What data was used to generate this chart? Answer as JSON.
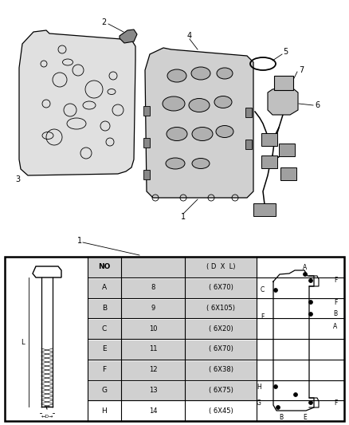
{
  "bg_color": "#ffffff",
  "table_rows": [
    {
      "letter": "NO",
      "number": "",
      "dim": "( D  X  L)"
    },
    {
      "letter": "A",
      "number": "8",
      "dim": "( 6X70)"
    },
    {
      "letter": "B",
      "number": "9",
      "dim": "( 6X105)"
    },
    {
      "letter": "C",
      "number": "10",
      "dim": "( 6X20)"
    },
    {
      "letter": "E",
      "number": "11",
      "dim": "( 6X70)"
    },
    {
      "letter": "F",
      "number": "12",
      "dim": "( 6X38)"
    },
    {
      "letter": "G",
      "number": "13",
      "dim": "( 6X75)"
    },
    {
      "letter": "H",
      "number": "14",
      "dim": "( 6X45)"
    }
  ]
}
